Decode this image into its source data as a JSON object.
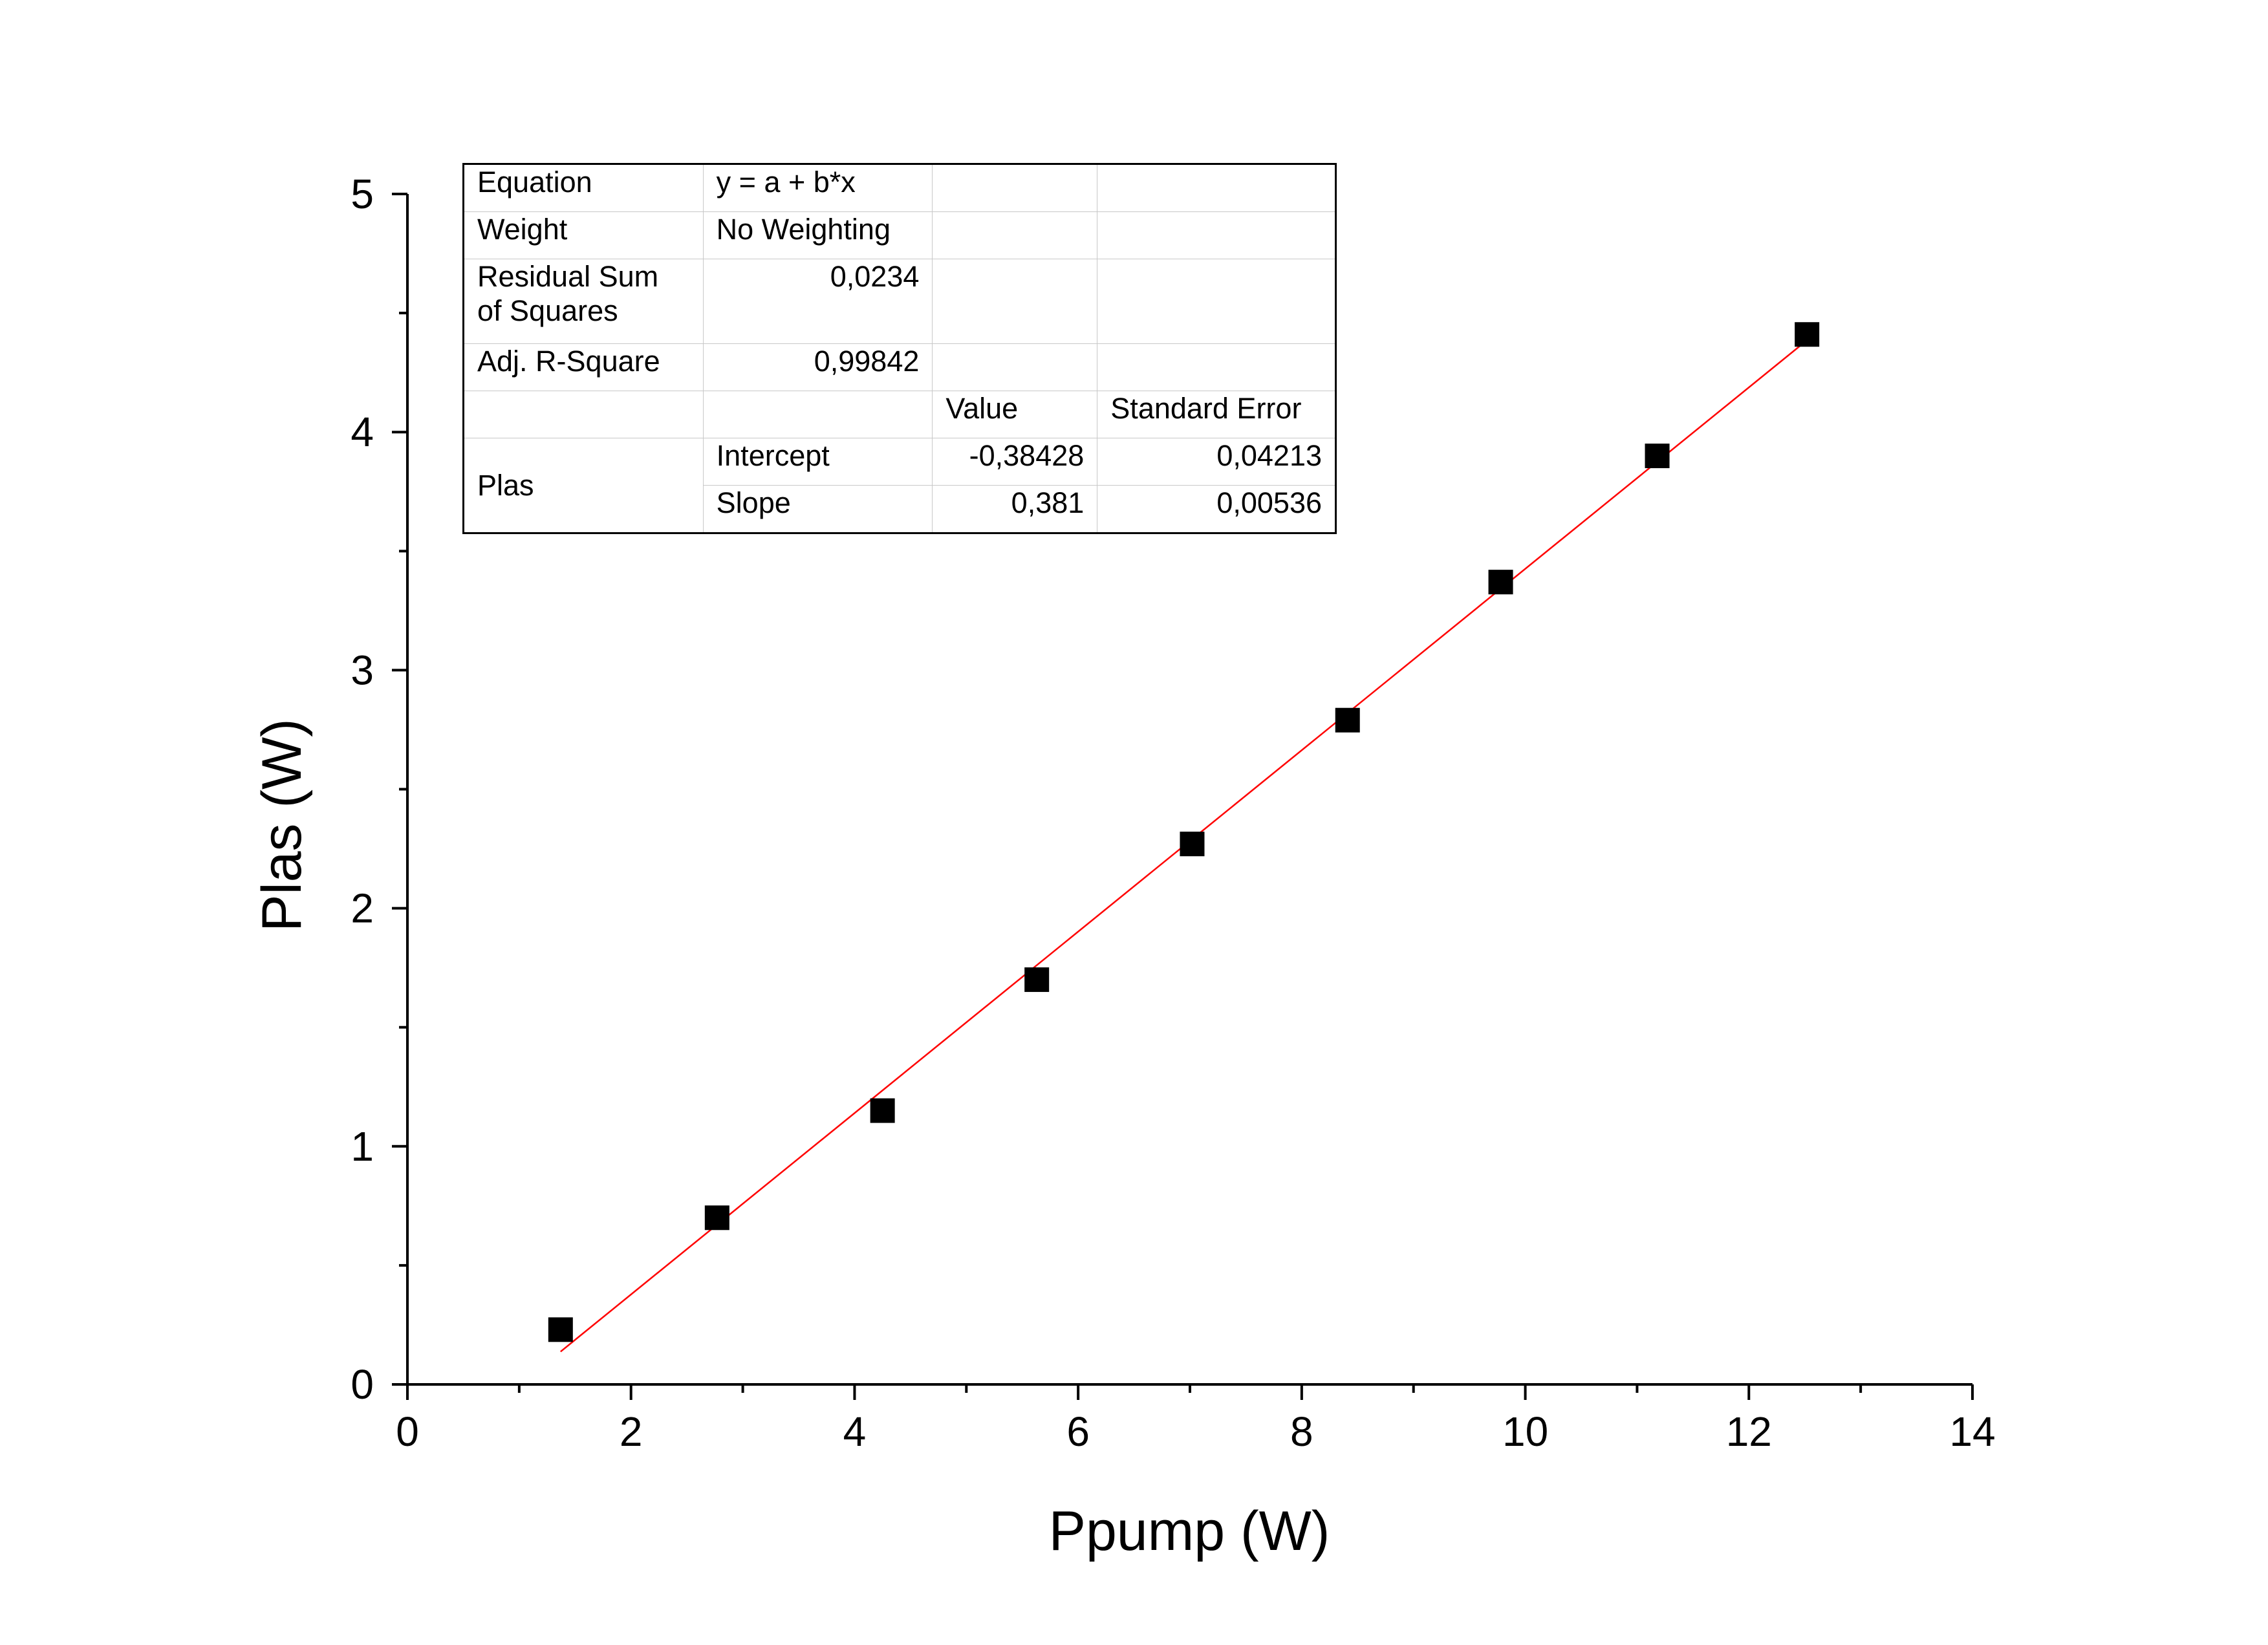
{
  "chart_data": {
    "type": "scatter",
    "xlabel": "Ppump (W)",
    "ylabel": "Plas (W)",
    "xlim": [
      0,
      14
    ],
    "ylim": [
      0,
      5
    ],
    "x_ticks": [
      "0",
      "2",
      "4",
      "6",
      "8",
      "10",
      "12",
      "14"
    ],
    "y_ticks": [
      "0",
      "1",
      "2",
      "3",
      "4",
      "5"
    ],
    "series": [
      {
        "marker": "square",
        "color": "#000000",
        "x": [
          1.37,
          2.77,
          4.25,
          5.63,
          7.02,
          8.41,
          9.78,
          11.18,
          12.52
        ],
        "y": [
          0.23,
          0.7,
          1.15,
          1.7,
          2.27,
          2.79,
          3.37,
          3.9,
          4.41
        ]
      }
    ],
    "fit_line": {
      "color": "#ff0000",
      "intercept": -0.38428,
      "slope": 0.381,
      "x_range": [
        1.37,
        12.52
      ]
    }
  },
  "fit_table": {
    "equation_label": "Equation",
    "equation_value": "y = a + b*x",
    "weight_label": "Weight",
    "weight_value": "No Weighting",
    "rss_label_line1": "Residual Sum",
    "rss_label_line2": "of Squares",
    "rss_value": "0,0234",
    "adjr2_label": "Adj. R-Square",
    "adjr2_value": "0,99842",
    "value_header": "Value",
    "stderr_header": "Standard Error",
    "series_name": "Plas",
    "intercept_label": "Intercept",
    "intercept_value": "-0,38428",
    "intercept_error": "0,04213",
    "slope_label": "Slope",
    "slope_value": "0,381",
    "slope_error": "0,00536"
  }
}
